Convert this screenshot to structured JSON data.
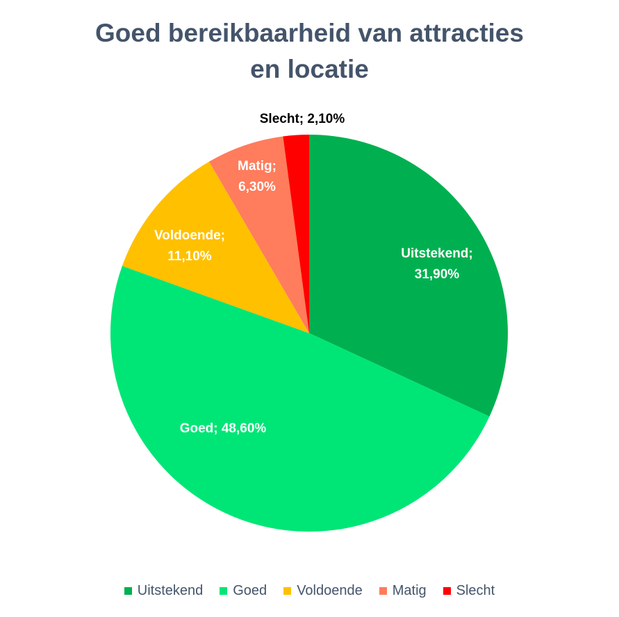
{
  "title": {
    "line1": "Goed bereikbaarheid van attracties",
    "line2": "en locatie"
  },
  "chart_data": {
    "type": "pie",
    "title": "Goed bereikbaarheid van attracties en locatie",
    "categories": [
      "Uitstekend",
      "Goed",
      "Voldoende",
      "Matig",
      "Slecht"
    ],
    "values": [
      31.9,
      48.6,
      11.1,
      6.3,
      2.1
    ],
    "value_labels": [
      "31,90%",
      "48,60%",
      "11,10%",
      "6,30%",
      "2,10%"
    ],
    "colors": [
      "#00b050",
      "#00e676",
      "#ffc000",
      "#ff7c5c",
      "#ff0000"
    ],
    "data_labels": [
      {
        "text": "Uitstekend;\n31,90%",
        "color": "#ffffff"
      },
      {
        "text": "Goed; 48,60%",
        "color": "#ffffff"
      },
      {
        "text": "Voldoende;\n11,10%",
        "color": "#ffffff"
      },
      {
        "text": "Matig;\n6,30%",
        "color": "#ffffff"
      },
      {
        "text": "Slecht; 2,10%",
        "color": "#000000"
      }
    ],
    "start_angle_deg": 0,
    "direction": "clockwise",
    "legend_position": "bottom"
  },
  "legend": {
    "items": [
      {
        "label": "Uitstekend",
        "color": "#00b050"
      },
      {
        "label": "Goed",
        "color": "#00e676"
      },
      {
        "label": "Voldoende",
        "color": "#ffc000"
      },
      {
        "label": "Matig",
        "color": "#ff7c5c"
      },
      {
        "label": "Slecht",
        "color": "#ff0000"
      }
    ]
  },
  "labels": {
    "uitstekend": {
      "l1": "Uitstekend;",
      "l2": "31,90%"
    },
    "goed": {
      "l1": "Goed; 48,60%"
    },
    "voldoende": {
      "l1": "Voldoende;",
      "l2": "11,10%"
    },
    "matig": {
      "l1": "Matig;",
      "l2": "6,30%"
    },
    "slecht": {
      "l1": "Slecht; 2,10%"
    }
  }
}
